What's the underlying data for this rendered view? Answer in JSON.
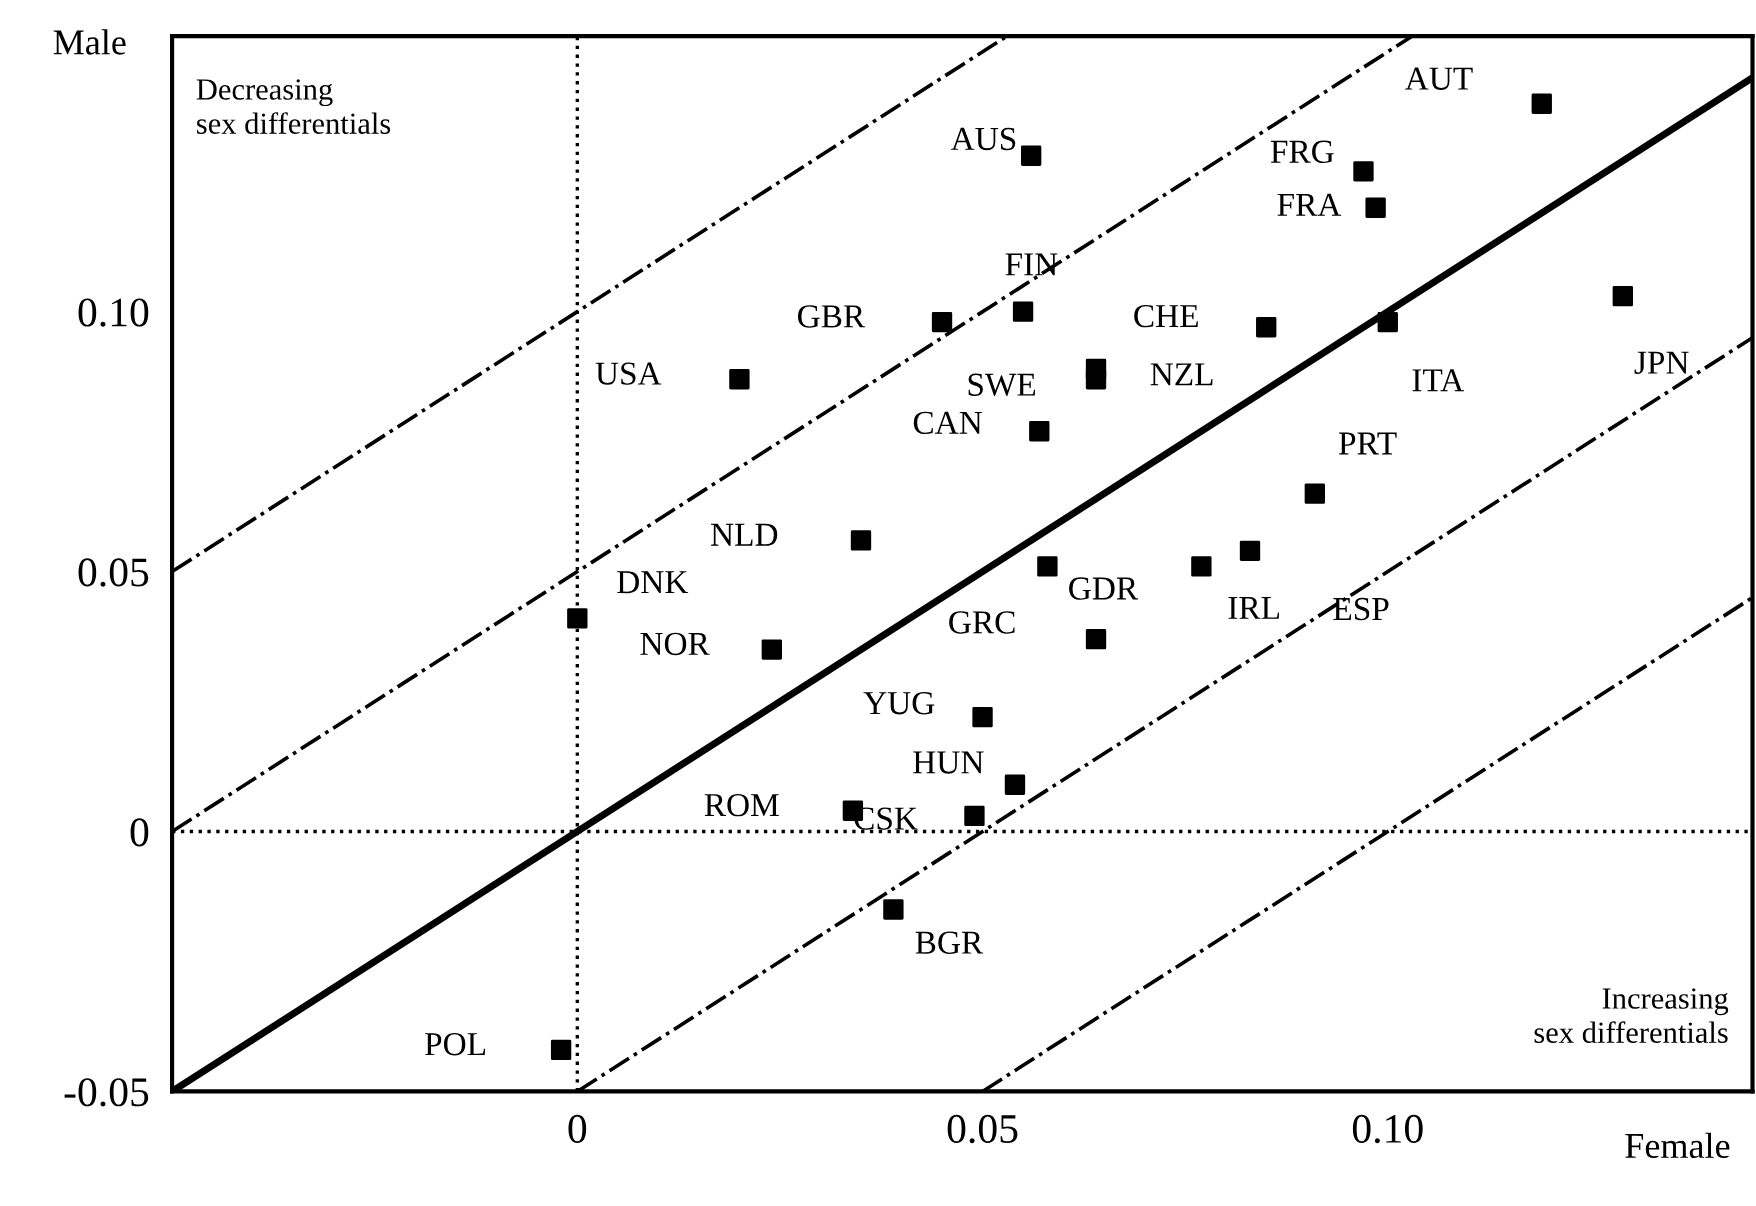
{
  "chart_data": {
    "type": "scatter",
    "xlabel": "Female",
    "ylabel": "Male",
    "xlim": [
      -0.05,
      0.145
    ],
    "ylim": [
      -0.05,
      0.153
    ],
    "xticks": [
      0,
      {
        "value": 0.05,
        "label": "0.05"
      },
      {
        "value": 0.1,
        "label": "0.10"
      }
    ],
    "yticks": [
      {
        "value": -0.05,
        "label": "-0.05"
      },
      0,
      {
        "value": 0.05,
        "label": "0.05"
      },
      {
        "value": 0.1,
        "label": "0.10"
      }
    ],
    "grid": false,
    "legend": false,
    "series": [
      {
        "type": "line",
        "color": "#000000",
        "line_style": "dotted",
        "marker": "none",
        "x": [
          0,
          0
        ],
        "values": [
          -0.05,
          0.153
        ]
      },
      {
        "type": "line",
        "color": "#000000",
        "line_style": "dotted",
        "marker": "none",
        "x": [
          -0.05,
          0.145
        ],
        "values": [
          0,
          0
        ]
      },
      {
        "type": "line",
        "color": "#000000",
        "line_style": "solid",
        "marker": "none",
        "x": [
          -0.05,
          0.145
        ],
        "values": [
          -0.05,
          0.145
        ]
      },
      {
        "type": "line",
        "color": "#000000",
        "line_style": "dashdot",
        "marker": "none",
        "x": [
          -0.05,
          0.053
        ],
        "values": [
          0.05,
          0.153
        ]
      },
      {
        "type": "line",
        "color": "#000000",
        "line_style": "dashdot",
        "marker": "none",
        "x": [
          -0.05,
          0.103
        ],
        "values": [
          0,
          0.153
        ]
      },
      {
        "type": "line",
        "color": "#000000",
        "line_style": "dashdot",
        "marker": "none",
        "x": [
          0,
          0.145
        ],
        "values": [
          -0.05,
          0.095
        ]
      },
      {
        "type": "line",
        "color": "#000000",
        "line_style": "dashdot",
        "marker": "none",
        "x": [
          0.05,
          0.145
        ],
        "values": [
          -0.05,
          0.045
        ]
      },
      {
        "color": "#000000",
        "marker": "square",
        "x": [
          0.119,
          0.056,
          0.097,
          0.0985,
          0.129,
          0.055,
          0.045,
          0.085,
          0.1,
          0.02,
          0.064,
          0.064,
          0.057,
          0.091,
          0.035,
          0.058,
          0.077,
          0.083,
          0.0,
          0.024,
          0.064,
          0.05,
          0.054,
          0.034,
          0.049,
          0.039,
          -0.002
        ],
        "values": [
          0.14,
          0.13,
          0.127,
          0.12,
          0.103,
          0.1,
          0.098,
          0.097,
          0.098,
          0.087,
          0.089,
          0.087,
          0.077,
          0.065,
          0.056,
          0.051,
          0.051,
          0.054,
          0.041,
          0.035,
          0.037,
          0.022,
          0.009,
          0.004,
          0.003,
          -0.015,
          -0.042
        ]
      }
    ],
    "annotations": [
      {
        "text": "AUT",
        "x": 0.119,
        "y": 0.14
      },
      {
        "text": "AUS",
        "x": 0.056,
        "y": 0.13
      },
      {
        "text": "FRG",
        "x": 0.097,
        "y": 0.127
      },
      {
        "text": "FRA",
        "x": 0.0985,
        "y": 0.12
      },
      {
        "text": "JPN",
        "x": 0.129,
        "y": 0.103
      },
      {
        "text": "FIN",
        "x": 0.055,
        "y": 0.1
      },
      {
        "text": "GBR",
        "x": 0.045,
        "y": 0.098
      },
      {
        "text": "CHE",
        "x": 0.085,
        "y": 0.097
      },
      {
        "text": "ITA",
        "x": 0.1,
        "y": 0.098
      },
      {
        "text": "USA",
        "x": 0.02,
        "y": 0.087
      },
      {
        "text": "NZL",
        "x": 0.064,
        "y": 0.089
      },
      {
        "text": "SWE",
        "x": 0.064,
        "y": 0.087
      },
      {
        "text": "CAN",
        "x": 0.057,
        "y": 0.077
      },
      {
        "text": "PRT",
        "x": 0.091,
        "y": 0.065
      },
      {
        "text": "NLD",
        "x": 0.035,
        "y": 0.056
      },
      {
        "text": "GDR",
        "x": 0.058,
        "y": 0.051
      },
      {
        "text": "IRL",
        "x": 0.077,
        "y": 0.051
      },
      {
        "text": "ESP",
        "x": 0.083,
        "y": 0.054
      },
      {
        "text": "DNK",
        "x": 0.0,
        "y": 0.041
      },
      {
        "text": "NOR",
        "x": 0.024,
        "y": 0.035
      },
      {
        "text": "GRC",
        "x": 0.064,
        "y": 0.037
      },
      {
        "text": "YUG",
        "x": 0.05,
        "y": 0.022
      },
      {
        "text": "HUN",
        "x": 0.054,
        "y": 0.009
      },
      {
        "text": "ROM",
        "x": 0.034,
        "y": 0.004
      },
      {
        "text": "CSK",
        "x": 0.049,
        "y": 0.003
      },
      {
        "text": "BGR",
        "x": 0.039,
        "y": -0.015
      },
      {
        "text": "POL",
        "x": -0.002,
        "y": -0.042
      },
      "Decreasing\nsex differentials",
      "Increasing\nsex differentials"
    ]
  }
}
